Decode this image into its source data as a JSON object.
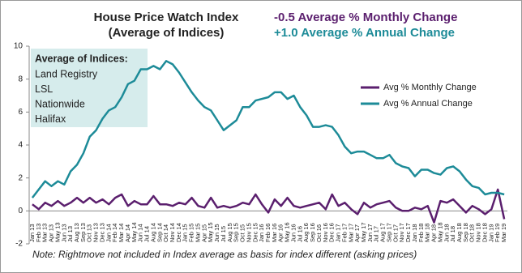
{
  "chart_data": {
    "type": "line",
    "title": [
      "House Price Watch Index",
      "(Average of Indices)"
    ],
    "annotations": [
      {
        "text": "-0.5 Average % Monthly Change",
        "color": "#5b1f6e"
      },
      {
        "text": "+1.0 Average % Annual Change",
        "color": "#1d8b98"
      }
    ],
    "box": {
      "title": "Average of Indices:",
      "items": [
        "Land Registry",
        "LSL",
        "Nationwide",
        "Halifax"
      ],
      "color": "#d6ecec"
    },
    "note": "Note: Rightmove not included in Index average as basis for index different (asking prices)",
    "categories": [
      "Jan 13",
      "Feb 13",
      "Mar 13",
      "Apr 13",
      "May 13",
      "Jun 13",
      "Jul 13",
      "Aug 13",
      "Sep 13",
      "Oct 13",
      "Nov 13",
      "Dec 13",
      "Jan 14",
      "Feb 14",
      "Mar 14",
      "Apr 14",
      "May 14",
      "Jun 14",
      "Jul 14",
      "Aug 14",
      "Sep 14",
      "Oct 14",
      "Nov 14",
      "Dec 14",
      "Jan 15",
      "Feb 15",
      "Mar 15",
      "Apr 15",
      "May 15",
      "Jun 15",
      "Jul 15",
      "Aug 15",
      "Sep 15",
      "Oct 15",
      "Nov 15",
      "Dec 15",
      "Jan 16",
      "Feb 16",
      "Mar 16",
      "Apr 16",
      "May 16",
      "Jun 16",
      "Jul 16",
      "Aug 16",
      "Sep 16",
      "Oct 16",
      "Nov 16",
      "Dec 16",
      "Jan 17",
      "Feb 17",
      "Mar 17",
      "Apr 17",
      "May 17",
      "Jun 17",
      "Jul 17",
      "Aug 17",
      "Sep 17",
      "Oct 17",
      "Nov 17",
      "Dec 17",
      "Jan 18",
      "Feb 18",
      "Mar 18",
      "Apr 18",
      "May 18",
      "Jun 18",
      "Jul 18",
      "Aug 18",
      "Sep 18",
      "Oct 18",
      "Nov 18",
      "Dec 18",
      "Jan 19",
      "Feb 19",
      "Mar 19"
    ],
    "series": [
      {
        "name": "Avg % Monthly Change",
        "color": "#5b1f6e",
        "values": [
          0.4,
          0.1,
          0.5,
          0.3,
          0.6,
          0.3,
          0.5,
          0.8,
          0.5,
          0.8,
          0.5,
          0.7,
          0.4,
          0.8,
          1.0,
          0.3,
          0.6,
          0.4,
          0.4,
          0.9,
          0.4,
          0.4,
          0.3,
          0.5,
          0.4,
          0.8,
          0.3,
          0.2,
          0.8,
          0.2,
          0.3,
          0.2,
          0.3,
          0.5,
          0.4,
          1.0,
          0.4,
          -0.1,
          0.7,
          0.3,
          0.8,
          0.3,
          0.2,
          0.3,
          0.4,
          0.5,
          0.1,
          1.0,
          0.3,
          0.5,
          0.1,
          -0.2,
          0.5,
          0.2,
          0.4,
          0.5,
          0.6,
          0.2,
          0.0,
          0.0,
          0.2,
          0.1,
          0.3,
          -0.7,
          0.6,
          0.5,
          0.7,
          0.3,
          -0.1,
          0.3,
          0.1,
          -0.2,
          0.1,
          1.3,
          -0.5
        ]
      },
      {
        "name": "Avg % Annual Change",
        "color": "#1d8b98",
        "values": [
          0.8,
          1.3,
          1.8,
          1.5,
          1.8,
          1.6,
          2.4,
          2.8,
          3.5,
          4.5,
          4.9,
          5.6,
          6.1,
          6.3,
          6.9,
          7.7,
          7.9,
          8.6,
          8.6,
          8.8,
          8.6,
          9.1,
          8.9,
          8.4,
          7.8,
          7.2,
          6.7,
          6.3,
          6.1,
          5.5,
          4.9,
          5.2,
          5.5,
          6.3,
          6.3,
          6.7,
          6.8,
          6.9,
          7.2,
          7.2,
          6.8,
          7.0,
          6.3,
          5.8,
          5.1,
          5.1,
          5.2,
          5.1,
          4.6,
          3.9,
          3.5,
          3.6,
          3.6,
          3.4,
          3.2,
          3.2,
          3.4,
          2.9,
          2.7,
          2.6,
          2.1,
          2.5,
          2.5,
          2.3,
          2.2,
          2.6,
          2.7,
          2.4,
          1.9,
          1.5,
          1.4,
          1.0,
          1.1,
          1.1,
          1.0
        ]
      }
    ],
    "ylim": [
      -2,
      10
    ],
    "yticks": [
      -2,
      0,
      2,
      4,
      6,
      8,
      10
    ],
    "grid": false,
    "legend": "upper right"
  }
}
